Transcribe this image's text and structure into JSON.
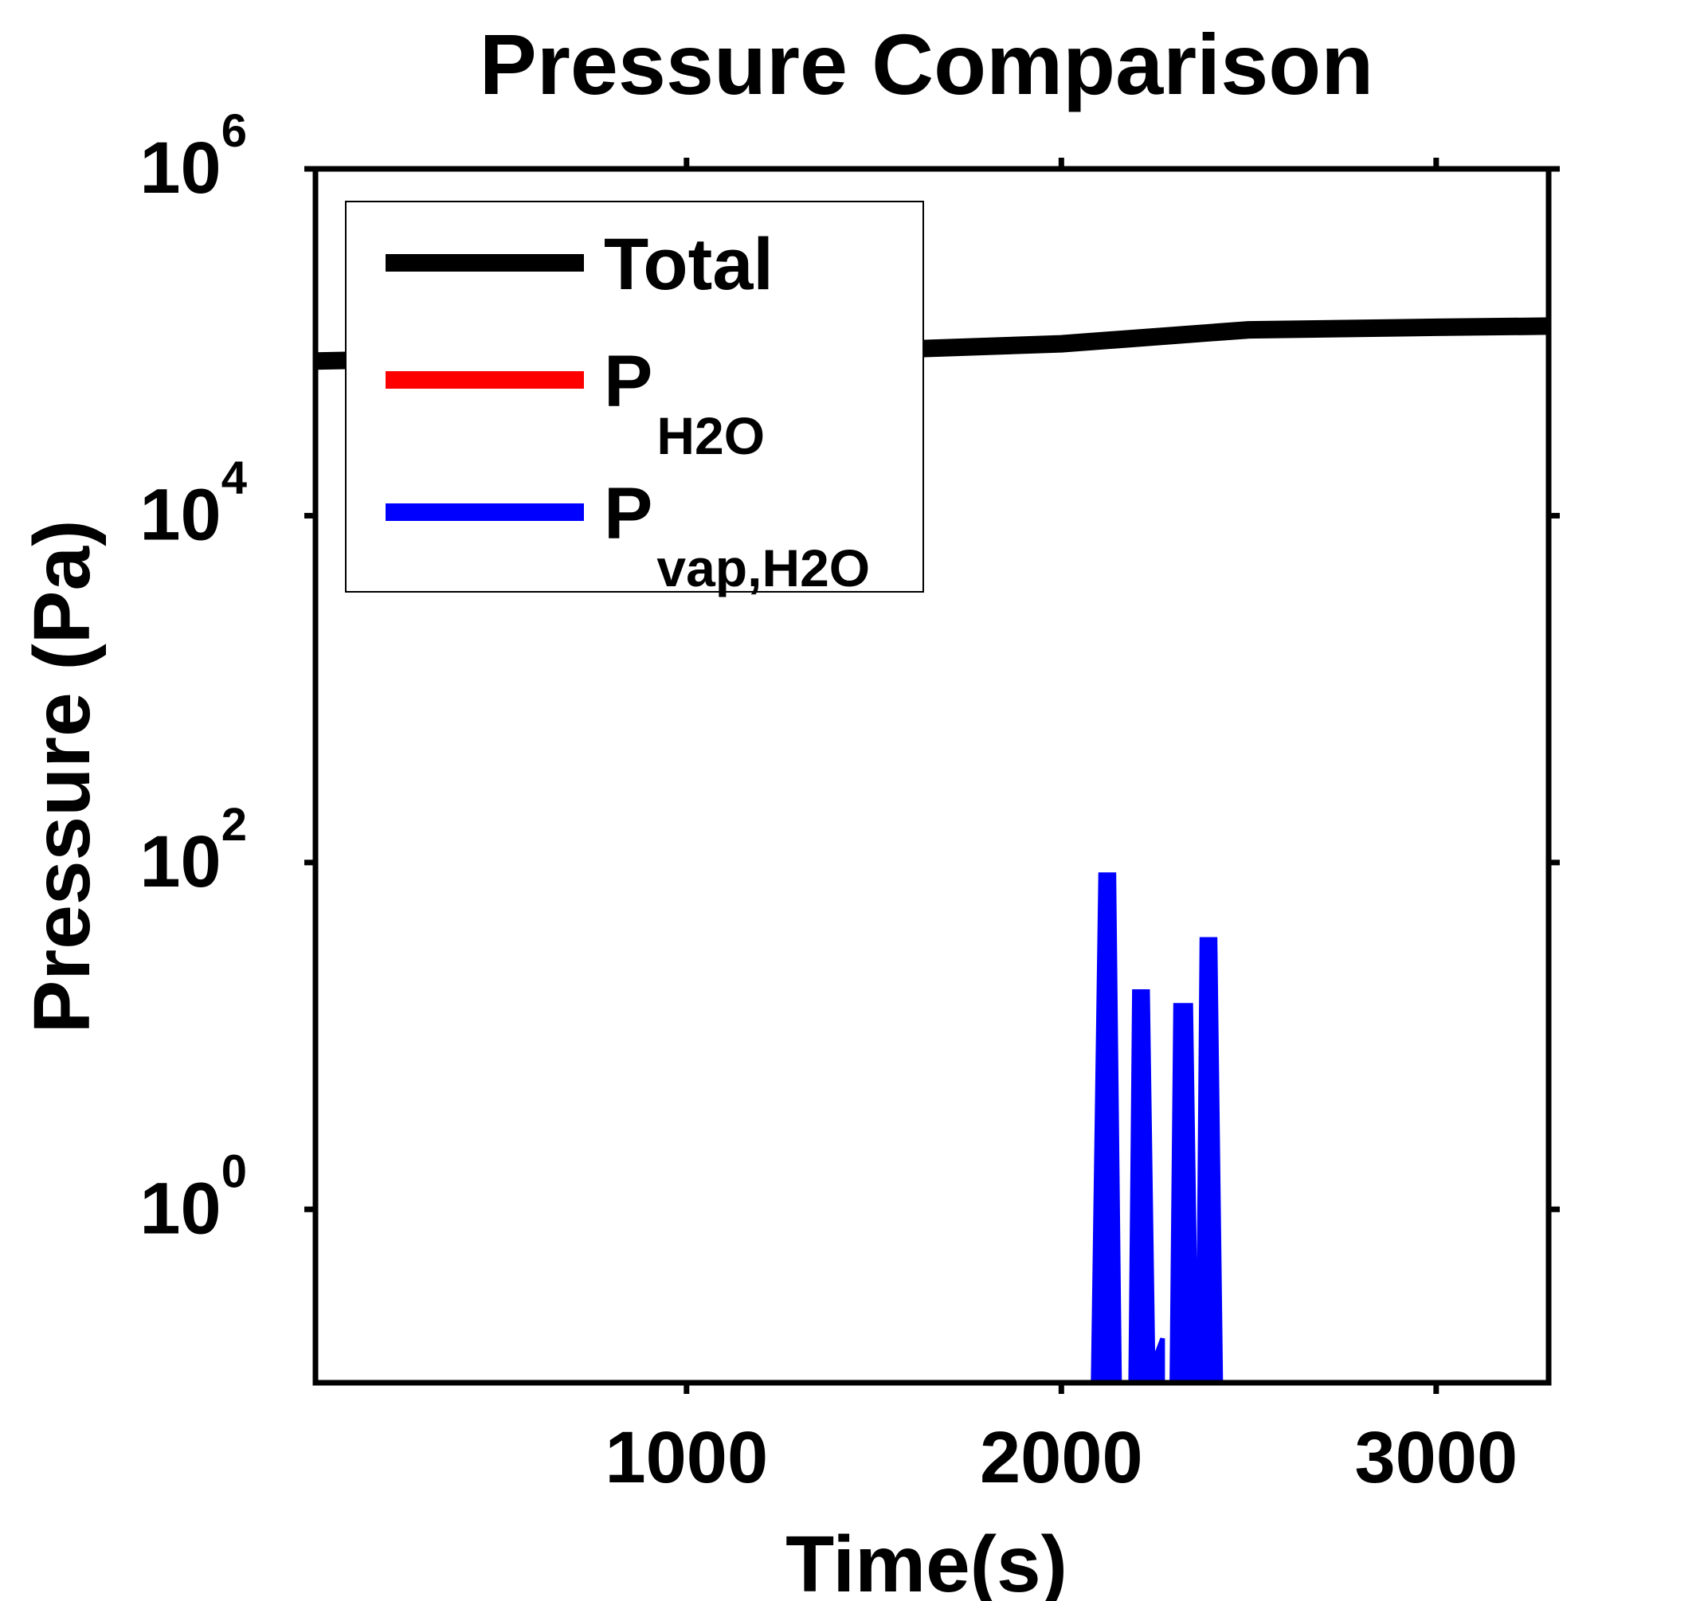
{
  "chart_data": {
    "type": "line",
    "title": "Pressure Comparison",
    "xlabel": "Time(s)",
    "ylabel": "Pressure (Pa)",
    "xlim": [
      10,
      3300
    ],
    "ylim_log10": [
      -1,
      6
    ],
    "yscale": "log",
    "grid": false,
    "legend_position": "top-left",
    "x_ticks": [
      {
        "value": 1000,
        "label": "1000"
      },
      {
        "value": 2000,
        "label": "2000"
      },
      {
        "value": 3000,
        "label": "3000"
      }
    ],
    "y_ticks": [
      {
        "exp": 0,
        "base": "10",
        "sup": "0"
      },
      {
        "exp": 2,
        "base": "10",
        "sup": "2"
      },
      {
        "exp": 4,
        "base": "10",
        "sup": "4"
      },
      {
        "exp": 6,
        "base": "10",
        "sup": "6"
      }
    ],
    "series": [
      {
        "name": "Total",
        "name_main": "Total",
        "name_sub": "",
        "color": "#000000",
        "points": [
          [
            10,
            78000
          ],
          [
            1000,
            86000
          ],
          [
            1500,
            90000
          ],
          [
            2000,
            98000
          ],
          [
            2500,
            118000
          ],
          [
            3000,
            122000
          ],
          [
            3300,
            124000
          ]
        ]
      },
      {
        "name": "PH2O",
        "name_main": "P",
        "name_sub": "H2O",
        "color": "#ff0000",
        "points": []
      },
      {
        "name": "Pvap,H2O",
        "name_main": "P",
        "name_sub": "vap,H2O",
        "color": "#0000ff",
        "points": [
          [
            2085,
            0.1
          ],
          [
            2105,
            85
          ],
          [
            2140,
            85
          ],
          [
            2155,
            0.1
          ],
          [
            2185,
            0.1
          ],
          [
            2195,
            18
          ],
          [
            2230,
            18
          ],
          [
            2245,
            0.1
          ],
          [
            2225,
            0.1
          ],
          [
            2270,
            0.18
          ],
          [
            2270,
            0.1
          ],
          [
            2295,
            0.1
          ],
          [
            2305,
            15
          ],
          [
            2345,
            15
          ],
          [
            2360,
            0.1
          ],
          [
            2365,
            0.1
          ],
          [
            2375,
            36
          ],
          [
            2410,
            36
          ],
          [
            2425,
            0.1
          ]
        ]
      }
    ]
  }
}
